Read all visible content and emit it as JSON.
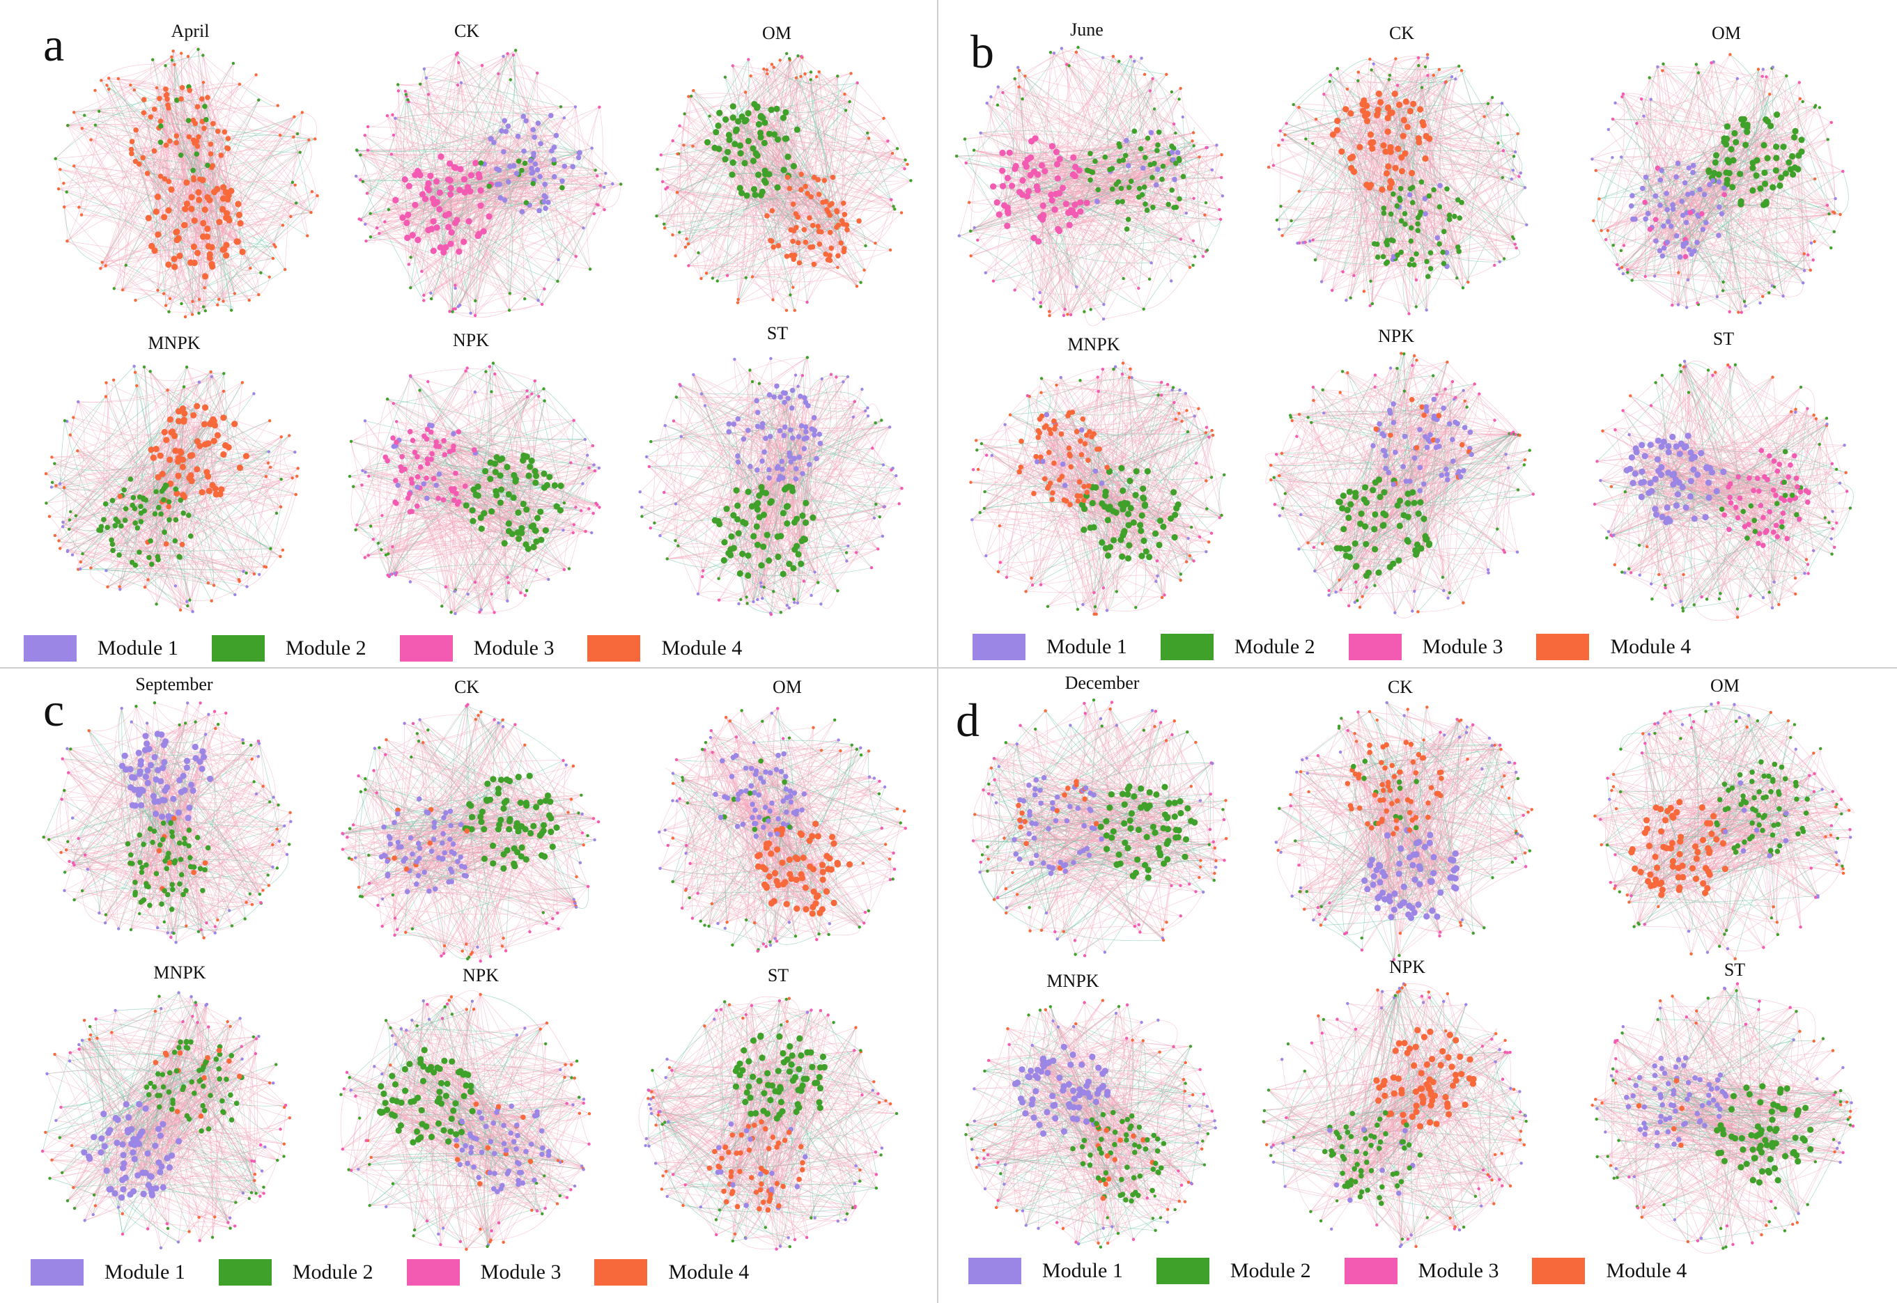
{
  "colors": {
    "module1": "#9b86e6",
    "module2": "#3fa12a",
    "module3": "#f35ab2",
    "module4": "#f7693b",
    "edge_positive": "#f4a2b8",
    "edge_negative": "#5cc09a"
  },
  "legend": [
    {
      "label": "Module 1",
      "color_key": "module1"
    },
    {
      "label": "Module 2",
      "color_key": "module2"
    },
    {
      "label": "Module 3",
      "color_key": "module3"
    },
    {
      "label": "Module 4",
      "color_key": "module4"
    }
  ],
  "panels": [
    {
      "letter": "a",
      "networks": [
        "April",
        "CK",
        "OM",
        "MNPK",
        "NPK",
        "ST"
      ]
    },
    {
      "letter": "b",
      "networks": [
        "June",
        "CK",
        "OM",
        "MNPK",
        "NPK",
        "ST"
      ]
    },
    {
      "letter": "c",
      "networks": [
        "September",
        "CK",
        "OM",
        "MNPK",
        "NPK",
        "ST"
      ]
    },
    {
      "letter": "d",
      "networks": [
        "December",
        "CK",
        "OM",
        "MNPK",
        "NPK",
        "ST"
      ]
    }
  ]
}
